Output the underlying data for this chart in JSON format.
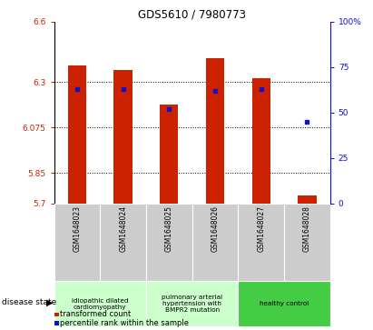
{
  "title": "GDS5610 / 7980773",
  "samples": [
    "GSM1648023",
    "GSM1648024",
    "GSM1648025",
    "GSM1648026",
    "GSM1648027",
    "GSM1648028"
  ],
  "transformed_count": [
    6.38,
    6.36,
    6.19,
    6.42,
    6.32,
    5.74
  ],
  "percentile_rank": [
    63,
    63,
    52,
    62,
    63,
    45
  ],
  "ylim_left": [
    5.7,
    6.6
  ],
  "yticks_left": [
    5.7,
    5.85,
    6.075,
    6.3,
    6.6
  ],
  "ytick_labels_left": [
    "5.7",
    "5.85",
    "6.075",
    "6.3",
    "6.6"
  ],
  "ylim_right": [
    0,
    100
  ],
  "yticks_right": [
    0,
    25,
    50,
    75,
    100
  ],
  "ytick_labels_right": [
    "0",
    "25",
    "50",
    "75",
    "100%"
  ],
  "bar_color": "#cc2200",
  "marker_color": "#1111cc",
  "group_labels": [
    "idiopathic dilated\ncardiomyopathy",
    "pulmonary arterial\nhypertension with\nBMPR2 mutation",
    "healthy control"
  ],
  "group_ranges": [
    [
      0,
      1
    ],
    [
      2,
      3
    ],
    [
      4,
      5
    ]
  ],
  "group_colors": [
    "#ccffcc",
    "#ccffcc",
    "#44cc44"
  ],
  "legend_red": "transformed count",
  "legend_blue": "percentile rank within the sample",
  "bar_bottom": 5.7,
  "bar_width": 0.4
}
